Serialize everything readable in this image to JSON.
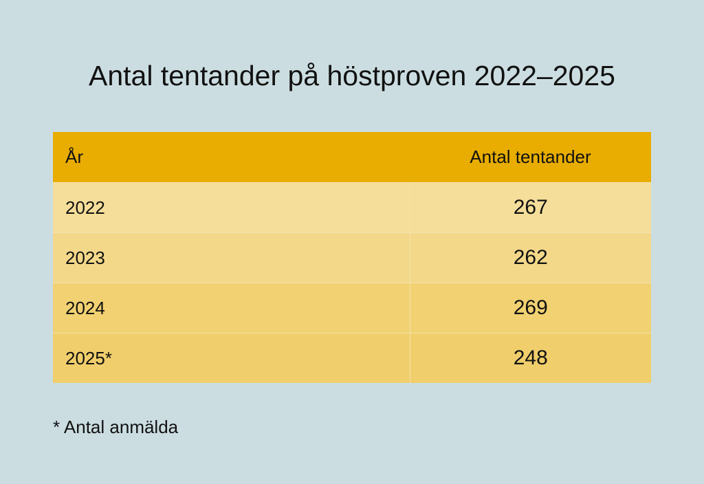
{
  "title": "Antal tentander på höstproven 2022–2025",
  "chart_data": {
    "type": "table",
    "title": "Antal tentander på höstproven 2022–2025",
    "columns": [
      "År",
      "Antal tentander"
    ],
    "rows": [
      {
        "year": "2022",
        "count": "267"
      },
      {
        "year": "2023",
        "count": "262"
      },
      {
        "year": "2024",
        "count": "269"
      },
      {
        "year": "2025*",
        "count": "248"
      }
    ],
    "footnote": "* Antal anmälda"
  },
  "colors": {
    "background": "#cbdde1",
    "header": "#e8ad00",
    "row_fill": "#f3d88a"
  }
}
